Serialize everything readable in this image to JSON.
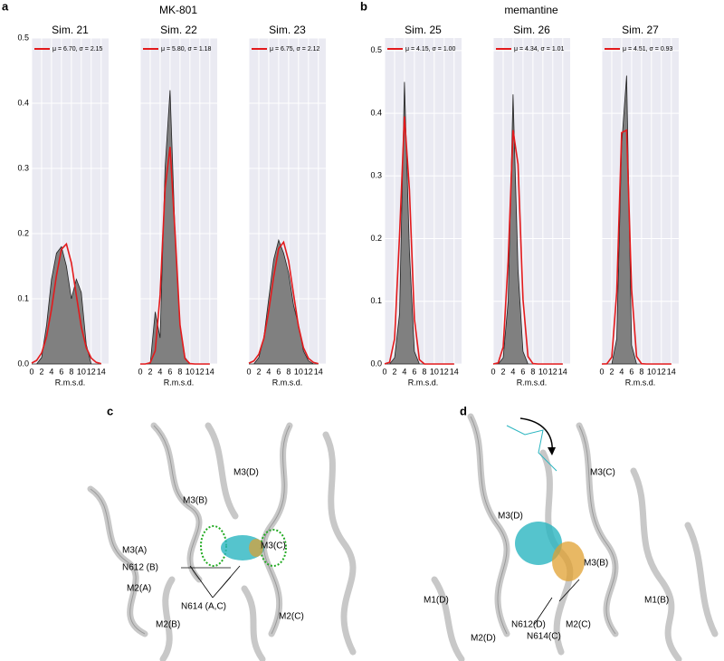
{
  "groups": [
    {
      "label": "a",
      "title": "MK-801"
    },
    {
      "label": "b",
      "title": "memantine"
    }
  ],
  "chart_data": [
    {
      "type": "histogram",
      "title": "Sim. 21",
      "xlabel": "R.m.s.d.",
      "x": [
        0,
        1,
        2,
        3,
        4,
        5,
        6,
        7,
        8,
        9,
        10,
        11,
        12,
        13,
        14
      ],
      "xlim": [
        0,
        15.5
      ],
      "xticks": [
        0,
        2,
        4,
        6,
        8,
        10,
        12,
        14
      ],
      "ylim": [
        0,
        0.5
      ],
      "yticks": [
        {
          "value": 0,
          "label": "0.0"
        },
        0.1,
        0.2,
        0.3,
        0.4,
        0.5
      ],
      "grid": true,
      "series": [
        {
          "color": "#808080",
          "values": [
            0,
            0,
            0.01,
            0.06,
            0.13,
            0.17,
            0.18,
            0.15,
            0.1,
            0.13,
            0.11,
            0.03,
            0,
            0,
            0
          ]
        },
        {
          "name": "μ = 6.70, σ = 2.15",
          "color": "#e31a1c",
          "values": [
            0.0014,
            0.0055,
            0.017,
            0.042,
            0.084,
            0.136,
            0.176,
            0.184,
            0.155,
            0.105,
            0.057,
            0.025,
            0.009,
            0.0025,
            0.0005
          ]
        }
      ]
    },
    {
      "type": "histogram",
      "title": "Sim. 22",
      "xlabel": "R.m.s.d.",
      "x": [
        0,
        1,
        2,
        3,
        4,
        5,
        6,
        7,
        8,
        9,
        10,
        11,
        12,
        13,
        14
      ],
      "xlim": [
        0,
        15.5
      ],
      "xticks": [
        0,
        2,
        4,
        6,
        8,
        10,
        12,
        14
      ],
      "ylim": [
        0,
        0.5
      ],
      "ygrid": [
        0,
        0.1,
        0.2,
        0.3,
        0.4,
        0.5
      ],
      "grid": true,
      "series": [
        {
          "color": "#808080",
          "values": [
            0,
            0,
            0,
            0.08,
            0.04,
            0.3,
            0.42,
            0.2,
            0.06,
            0.01,
            0,
            0,
            0,
            0,
            0
          ]
        },
        {
          "name": "μ = 5.80, σ = 1.18",
          "color": "#e31a1c",
          "values": [
            0,
            0,
            0.0019,
            0.02,
            0.106,
            0.269,
            0.333,
            0.202,
            0.06,
            0.0085,
            0.0006,
            0,
            0,
            0,
            0
          ]
        }
      ]
    },
    {
      "type": "histogram",
      "title": "Sim. 23",
      "xlabel": "R.m.s.d.",
      "x": [
        0,
        1,
        2,
        3,
        4,
        5,
        6,
        7,
        8,
        9,
        10,
        11,
        12,
        13,
        14
      ],
      "xlim": [
        0,
        15.5
      ],
      "xticks": [
        0,
        2,
        4,
        6,
        8,
        10,
        12,
        14
      ],
      "ylim": [
        0,
        0.5
      ],
      "ygrid": [
        0,
        0.1,
        0.2,
        0.3,
        0.4,
        0.5
      ],
      "grid": true,
      "series": [
        {
          "color": "#808080",
          "values": [
            0,
            0,
            0.01,
            0.04,
            0.1,
            0.16,
            0.19,
            0.17,
            0.14,
            0.09,
            0.06,
            0.02,
            0.005,
            0,
            0
          ]
        },
        {
          "name": "μ = 6.75, σ = 2.12",
          "color": "#e31a1c",
          "values": [
            0.0012,
            0.0047,
            0.015,
            0.039,
            0.081,
            0.134,
            0.177,
            0.187,
            0.158,
            0.107,
            0.058,
            0.025,
            0.0087,
            0.0024,
            0.0005
          ]
        }
      ]
    },
    {
      "type": "histogram",
      "title": "Sim. 25",
      "xlabel": "R.m.s.d.",
      "x": [
        0,
        1,
        2,
        3,
        4,
        5,
        6,
        7,
        8,
        9,
        10,
        11,
        12,
        13,
        14
      ],
      "xlim": [
        0,
        15.5
      ],
      "xticks": [
        0,
        2,
        4,
        6,
        8,
        10,
        12,
        14
      ],
      "ylim": [
        0,
        0.52
      ],
      "yticks": [
        {
          "value": 0,
          "label": "0.0"
        },
        0.1,
        0.2,
        0.3,
        0.4,
        0.5
      ],
      "grid": true,
      "series": [
        {
          "color": "#808080",
          "values": [
            0,
            0,
            0.01,
            0.08,
            0.45,
            0.18,
            0.02,
            0,
            0,
            0,
            0,
            0,
            0,
            0,
            0
          ]
        },
        {
          "name": "μ = 4.15, σ = 1.00",
          "color": "#e31a1c",
          "values": [
            0.0001,
            0.0028,
            0.04,
            0.206,
            0.395,
            0.278,
            0.072,
            0.0069,
            0.0002,
            0,
            0,
            0,
            0,
            0,
            0
          ]
        }
      ]
    },
    {
      "type": "histogram",
      "title": "Sim. 26",
      "xlabel": "R.m.s.d.",
      "x": [
        0,
        1,
        2,
        3,
        4,
        5,
        6,
        7,
        8,
        9,
        10,
        11,
        12,
        13,
        14
      ],
      "xlim": [
        0,
        15.5
      ],
      "xticks": [
        0,
        2,
        4,
        6,
        8,
        10,
        12,
        14
      ],
      "ylim": [
        0,
        0.52
      ],
      "ygrid": [
        0,
        0.1,
        0.2,
        0.3,
        0.4,
        0.5
      ],
      "grid": true,
      "series": [
        {
          "color": "#808080",
          "values": [
            0,
            0,
            0.01,
            0.1,
            0.43,
            0.15,
            0.02,
            0,
            0,
            0,
            0,
            0,
            0,
            0,
            0
          ]
        },
        {
          "name": "μ = 4.34, σ = 1.01",
          "color": "#e31a1c",
          "values": [
            0,
            0.0017,
            0.027,
            0.164,
            0.373,
            0.319,
            0.103,
            0.012,
            0.0006,
            0,
            0,
            0,
            0,
            0,
            0
          ]
        }
      ]
    },
    {
      "type": "histogram",
      "title": "Sim. 27",
      "xlabel": "R.m.s.d.",
      "x": [
        0,
        1,
        2,
        3,
        4,
        5,
        6,
        7,
        8,
        9,
        10,
        11,
        12,
        13,
        14
      ],
      "xlim": [
        0,
        15.5
      ],
      "xticks": [
        0,
        2,
        4,
        6,
        8,
        10,
        12,
        14
      ],
      "ylim": [
        0,
        0.52
      ],
      "ygrid": [
        0,
        0.1,
        0.2,
        0.3,
        0.4,
        0.5
      ],
      "grid": true,
      "series": [
        {
          "color": "#808080",
          "values": [
            0,
            0,
            0,
            0.04,
            0.35,
            0.46,
            0.03,
            0,
            0,
            0,
            0,
            0,
            0,
            0,
            0
          ]
        },
        {
          "name": "μ = 4.51, σ = 0.93",
          "color": "#e31a1c",
          "values": [
            0,
            0.0003,
            0.011,
            0.115,
            0.369,
            0.373,
            0.119,
            0.012,
            0.0004,
            0,
            0,
            0,
            0,
            0,
            0
          ]
        }
      ]
    }
  ],
  "panels": [
    {
      "label": "c",
      "annotations": [
        "M3(D)",
        "M3(B)",
        "M3(A)",
        "M3(C)",
        "N612 (B)",
        "M2(A)",
        "N614 (A,C)",
        "M2(B)",
        "M2(C)"
      ]
    },
    {
      "label": "d",
      "annotations": [
        "M3(C)",
        "M3(D)",
        "M3(B)",
        "M1(D)",
        "M1(B)",
        "N612(D)",
        "M2(C)",
        "N614(C)",
        "M2(D)"
      ]
    }
  ]
}
